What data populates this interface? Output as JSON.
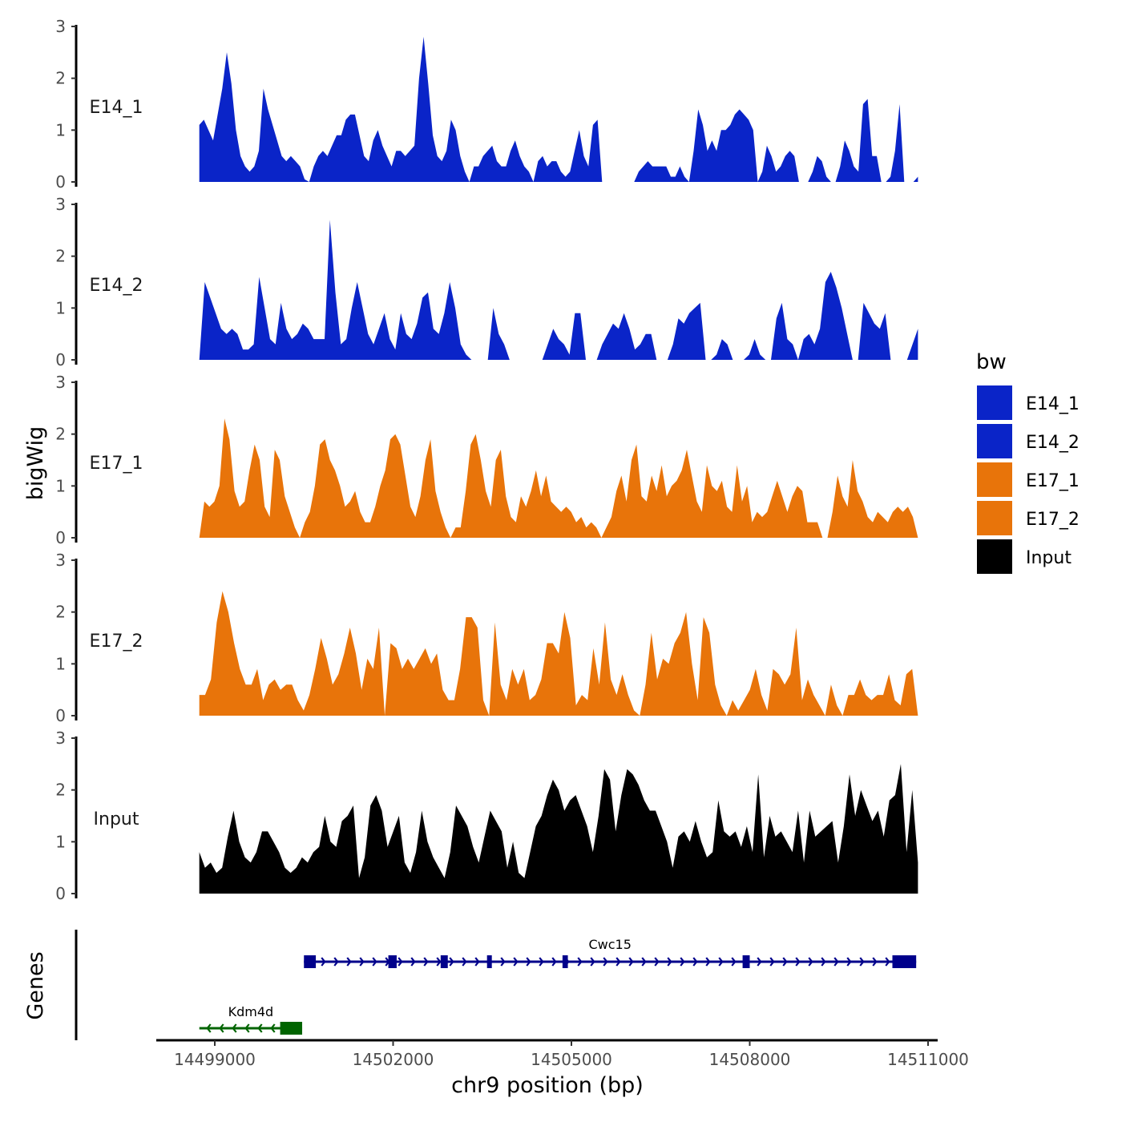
{
  "chart_data": {
    "type": "area",
    "ylabel": "bigWig",
    "xlabel": "chr9 position (bp)",
    "genes_label": "Genes",
    "xlim": [
      14497800,
      14511200
    ],
    "x_ticks": [
      14499000,
      14502000,
      14505000,
      14508000,
      14511000
    ],
    "x_tick_labels": [
      "14499000",
      "14502000",
      "14505000",
      "14508000",
      "14511000"
    ],
    "region": [
      14498740,
      14510830
    ],
    "ylim": [
      0,
      3
    ],
    "y_ticks": [
      0,
      1,
      2,
      3
    ],
    "y_tick_labels": [
      "0",
      "1",
      "2",
      "3"
    ],
    "legend": {
      "title": "bw",
      "entries": [
        {
          "label": "E14_1",
          "color": "#0A24C8"
        },
        {
          "label": "E14_2",
          "color": "#0A24C8"
        },
        {
          "label": "E17_1",
          "color": "#E8740A"
        },
        {
          "label": "E17_2",
          "color": "#E8740A"
        },
        {
          "label": "Input",
          "color": "#000000"
        }
      ]
    },
    "series": [
      {
        "name": "E14_1",
        "color": "#0A24C8",
        "values": [
          1.1,
          1.2,
          1.0,
          0.8,
          1.3,
          1.8,
          2.5,
          1.9,
          1.0,
          0.5,
          0.3,
          0.2,
          0.3,
          0.6,
          1.8,
          1.4,
          1.1,
          0.8,
          0.5,
          0.4,
          0.5,
          0.4,
          0.3,
          0.05,
          0.0,
          0.3,
          0.5,
          0.6,
          0.5,
          0.7,
          0.9,
          0.9,
          1.2,
          1.3,
          1.3,
          0.9,
          0.5,
          0.4,
          0.8,
          1.0,
          0.7,
          0.5,
          0.3,
          0.6,
          0.6,
          0.5,
          0.6,
          0.7,
          2.0,
          2.8,
          1.9,
          0.9,
          0.5,
          0.4,
          0.6,
          1.2,
          1.0,
          0.5,
          0.2,
          0.0,
          0.3,
          0.3,
          0.5,
          0.6,
          0.7,
          0.4,
          0.3,
          0.3,
          0.6,
          0.8,
          0.5,
          0.3,
          0.2,
          0.0,
          0.4,
          0.5,
          0.3,
          0.4,
          0.4,
          0.2,
          0.1,
          0.2,
          0.6,
          1.0,
          0.5,
          0.3,
          1.1,
          1.2,
          0.0,
          0.0,
          0.0,
          0.0,
          0.0,
          0.0,
          0.0,
          0.0,
          0.2,
          0.3,
          0.4,
          0.3,
          0.3,
          0.3,
          0.3,
          0.1,
          0.1,
          0.3,
          0.1,
          0.0,
          0.6,
          1.4,
          1.1,
          0.6,
          0.8,
          0.6,
          1.0,
          1.0,
          1.1,
          1.3,
          1.4,
          1.3,
          1.2,
          1.0,
          0.0,
          0.2,
          0.7,
          0.5,
          0.2,
          0.3,
          0.5,
          0.6,
          0.5,
          0.0,
          0.0,
          0.0,
          0.2,
          0.5,
          0.4,
          0.1,
          0.0,
          0.0,
          0.3,
          0.8,
          0.6,
          0.3,
          0.2,
          1.5,
          1.6,
          0.5,
          0.5,
          0.0,
          0.0,
          0.1,
          0.6,
          1.5,
          0.0,
          0.0,
          0.0,
          0.1
        ]
      },
      {
        "name": "E14_2",
        "color": "#0A24C8",
        "values": [
          0.0,
          1.5,
          1.2,
          0.9,
          0.6,
          0.5,
          0.6,
          0.5,
          0.2,
          0.2,
          0.3,
          1.6,
          1.0,
          0.4,
          0.3,
          1.1,
          0.6,
          0.4,
          0.5,
          0.7,
          0.6,
          0.4,
          0.4,
          0.4,
          2.7,
          1.3,
          0.3,
          0.4,
          1.0,
          1.5,
          1.0,
          0.5,
          0.3,
          0.6,
          0.9,
          0.4,
          0.2,
          0.9,
          0.5,
          0.4,
          0.7,
          1.2,
          1.3,
          0.6,
          0.5,
          0.9,
          1.5,
          1.0,
          0.3,
          0.1,
          0.0,
          0.0,
          0.0,
          0.0,
          1.0,
          0.5,
          0.3,
          0.0,
          0.0,
          0.0,
          0.0,
          0.0,
          0.0,
          0.0,
          0.3,
          0.6,
          0.4,
          0.3,
          0.1,
          0.9,
          0.9,
          0.0,
          0.0,
          0.0,
          0.3,
          0.5,
          0.7,
          0.6,
          0.9,
          0.6,
          0.2,
          0.3,
          0.5,
          0.5,
          0.0,
          0.0,
          0.0,
          0.3,
          0.8,
          0.7,
          0.9,
          1.0,
          1.1,
          0.0,
          0.0,
          0.1,
          0.4,
          0.3,
          0.0,
          0.0,
          0.0,
          0.1,
          0.4,
          0.1,
          0.0,
          0.0,
          0.8,
          1.1,
          0.4,
          0.3,
          0.0,
          0.4,
          0.5,
          0.3,
          0.6,
          1.5,
          1.7,
          1.4,
          1.0,
          0.5,
          0.0,
          0.0,
          1.1,
          0.9,
          0.7,
          0.6,
          0.9,
          0.0,
          0.0,
          0.0,
          0.0,
          0.3,
          0.6
        ]
      },
      {
        "name": "E17_1",
        "color": "#E8740A",
        "values": [
          0.0,
          0.7,
          0.6,
          0.7,
          1.0,
          2.3,
          1.9,
          0.9,
          0.6,
          0.7,
          1.3,
          1.8,
          1.5,
          0.6,
          0.4,
          1.7,
          1.5,
          0.8,
          0.5,
          0.2,
          0.0,
          0.3,
          0.5,
          1.0,
          1.8,
          1.9,
          1.5,
          1.3,
          1.0,
          0.6,
          0.7,
          0.9,
          0.5,
          0.3,
          0.3,
          0.6,
          1.0,
          1.3,
          1.9,
          2.0,
          1.8,
          1.2,
          0.6,
          0.4,
          0.8,
          1.5,
          1.9,
          0.9,
          0.5,
          0.2,
          0.0,
          0.2,
          0.2,
          0.9,
          1.8,
          2.0,
          1.5,
          0.9,
          0.6,
          1.5,
          1.7,
          0.8,
          0.4,
          0.3,
          0.8,
          0.6,
          0.9,
          1.3,
          0.8,
          1.2,
          0.7,
          0.6,
          0.5,
          0.6,
          0.5,
          0.3,
          0.4,
          0.2,
          0.3,
          0.2,
          0.0,
          0.2,
          0.4,
          0.9,
          1.2,
          0.7,
          1.5,
          1.8,
          0.8,
          0.7,
          1.2,
          0.9,
          1.4,
          0.8,
          1.0,
          1.1,
          1.3,
          1.7,
          1.2,
          0.7,
          0.5,
          1.4,
          1.0,
          0.9,
          1.1,
          0.6,
          0.5,
          1.4,
          0.7,
          1.0,
          0.3,
          0.5,
          0.4,
          0.5,
          0.8,
          1.1,
          0.8,
          0.5,
          0.8,
          1.0,
          0.9,
          0.3,
          0.3,
          0.3,
          0.0,
          0.0,
          0.5,
          1.2,
          0.8,
          0.6,
          1.5,
          0.9,
          0.7,
          0.4,
          0.3,
          0.5,
          0.4,
          0.3,
          0.5,
          0.6,
          0.5,
          0.6,
          0.4,
          0.0
        ]
      },
      {
        "name": "E17_2",
        "color": "#E8740A",
        "values": [
          0.4,
          0.4,
          0.7,
          1.8,
          2.4,
          2.0,
          1.4,
          0.9,
          0.6,
          0.6,
          0.9,
          0.3,
          0.6,
          0.7,
          0.5,
          0.6,
          0.6,
          0.3,
          0.1,
          0.4,
          0.9,
          1.5,
          1.1,
          0.6,
          0.8,
          1.2,
          1.7,
          1.2,
          0.5,
          1.1,
          0.9,
          1.7,
          0.0,
          1.4,
          1.3,
          0.9,
          1.1,
          0.9,
          1.1,
          1.3,
          1.0,
          1.2,
          0.5,
          0.3,
          0.3,
          0.9,
          1.9,
          1.9,
          1.7,
          0.3,
          0.0,
          1.8,
          0.6,
          0.3,
          0.9,
          0.6,
          0.9,
          0.3,
          0.4,
          0.7,
          1.4,
          1.4,
          1.2,
          2.0,
          1.5,
          0.2,
          0.4,
          0.3,
          1.3,
          0.6,
          1.8,
          0.7,
          0.4,
          0.8,
          0.4,
          0.1,
          0.0,
          0.6,
          1.6,
          0.7,
          1.1,
          1.0,
          1.4,
          1.6,
          2.0,
          1.0,
          0.3,
          1.9,
          1.6,
          0.6,
          0.2,
          0.0,
          0.3,
          0.1,
          0.3,
          0.5,
          0.9,
          0.4,
          0.1,
          0.9,
          0.8,
          0.6,
          0.8,
          1.7,
          0.3,
          0.7,
          0.4,
          0.2,
          0.0,
          0.6,
          0.2,
          0.0,
          0.4,
          0.4,
          0.7,
          0.4,
          0.3,
          0.4,
          0.4,
          0.8,
          0.3,
          0.2,
          0.8,
          0.9,
          0.0
        ]
      },
      {
        "name": "Input",
        "color": "#000000",
        "values": [
          0.8,
          0.5,
          0.6,
          0.4,
          0.5,
          1.1,
          1.6,
          1.0,
          0.7,
          0.6,
          0.8,
          1.2,
          1.2,
          1.0,
          0.8,
          0.5,
          0.4,
          0.5,
          0.7,
          0.6,
          0.8,
          0.9,
          1.5,
          1.0,
          0.9,
          1.4,
          1.5,
          1.7,
          0.3,
          0.7,
          1.7,
          1.9,
          1.6,
          0.9,
          1.2,
          1.5,
          0.6,
          0.4,
          0.8,
          1.6,
          1.0,
          0.7,
          0.5,
          0.3,
          0.8,
          1.7,
          1.5,
          1.3,
          0.9,
          0.6,
          1.1,
          1.6,
          1.4,
          1.2,
          0.5,
          1.0,
          0.4,
          0.3,
          0.8,
          1.3,
          1.5,
          1.9,
          2.2,
          2.0,
          1.6,
          1.8,
          1.9,
          1.6,
          1.3,
          0.8,
          1.5,
          2.4,
          2.2,
          1.2,
          1.9,
          2.4,
          2.3,
          2.1,
          1.8,
          1.6,
          1.6,
          1.3,
          1.0,
          0.5,
          1.1,
          1.2,
          1.0,
          1.4,
          1.0,
          0.7,
          0.8,
          1.8,
          1.2,
          1.1,
          1.2,
          0.9,
          1.3,
          0.8,
          2.3,
          0.7,
          1.5,
          1.1,
          1.2,
          1.0,
          0.8,
          1.6,
          0.6,
          1.6,
          1.1,
          1.2,
          1.3,
          1.4,
          0.6,
          1.3,
          2.3,
          1.5,
          2.0,
          1.7,
          1.4,
          1.6,
          1.1,
          1.8,
          1.9,
          2.5,
          0.8,
          2.0,
          0.6
        ]
      }
    ],
    "genes": [
      {
        "name": "Cwc15",
        "strand": "+",
        "start": 14500500,
        "end": 14510800,
        "color": "#00008B",
        "exons": [
          [
            14500500,
            14500700
          ],
          [
            14501920,
            14502060
          ],
          [
            14502800,
            14502920
          ],
          [
            14503580,
            14503660
          ],
          [
            14504850,
            14504940
          ],
          [
            14507880,
            14508000
          ],
          [
            14510400,
            14510800
          ]
        ]
      },
      {
        "name": "Kdm4d",
        "strand": "-",
        "start": 14498740,
        "end": 14500470,
        "color": "#006400",
        "exons": [
          [
            14500100,
            14500470
          ]
        ]
      }
    ]
  }
}
